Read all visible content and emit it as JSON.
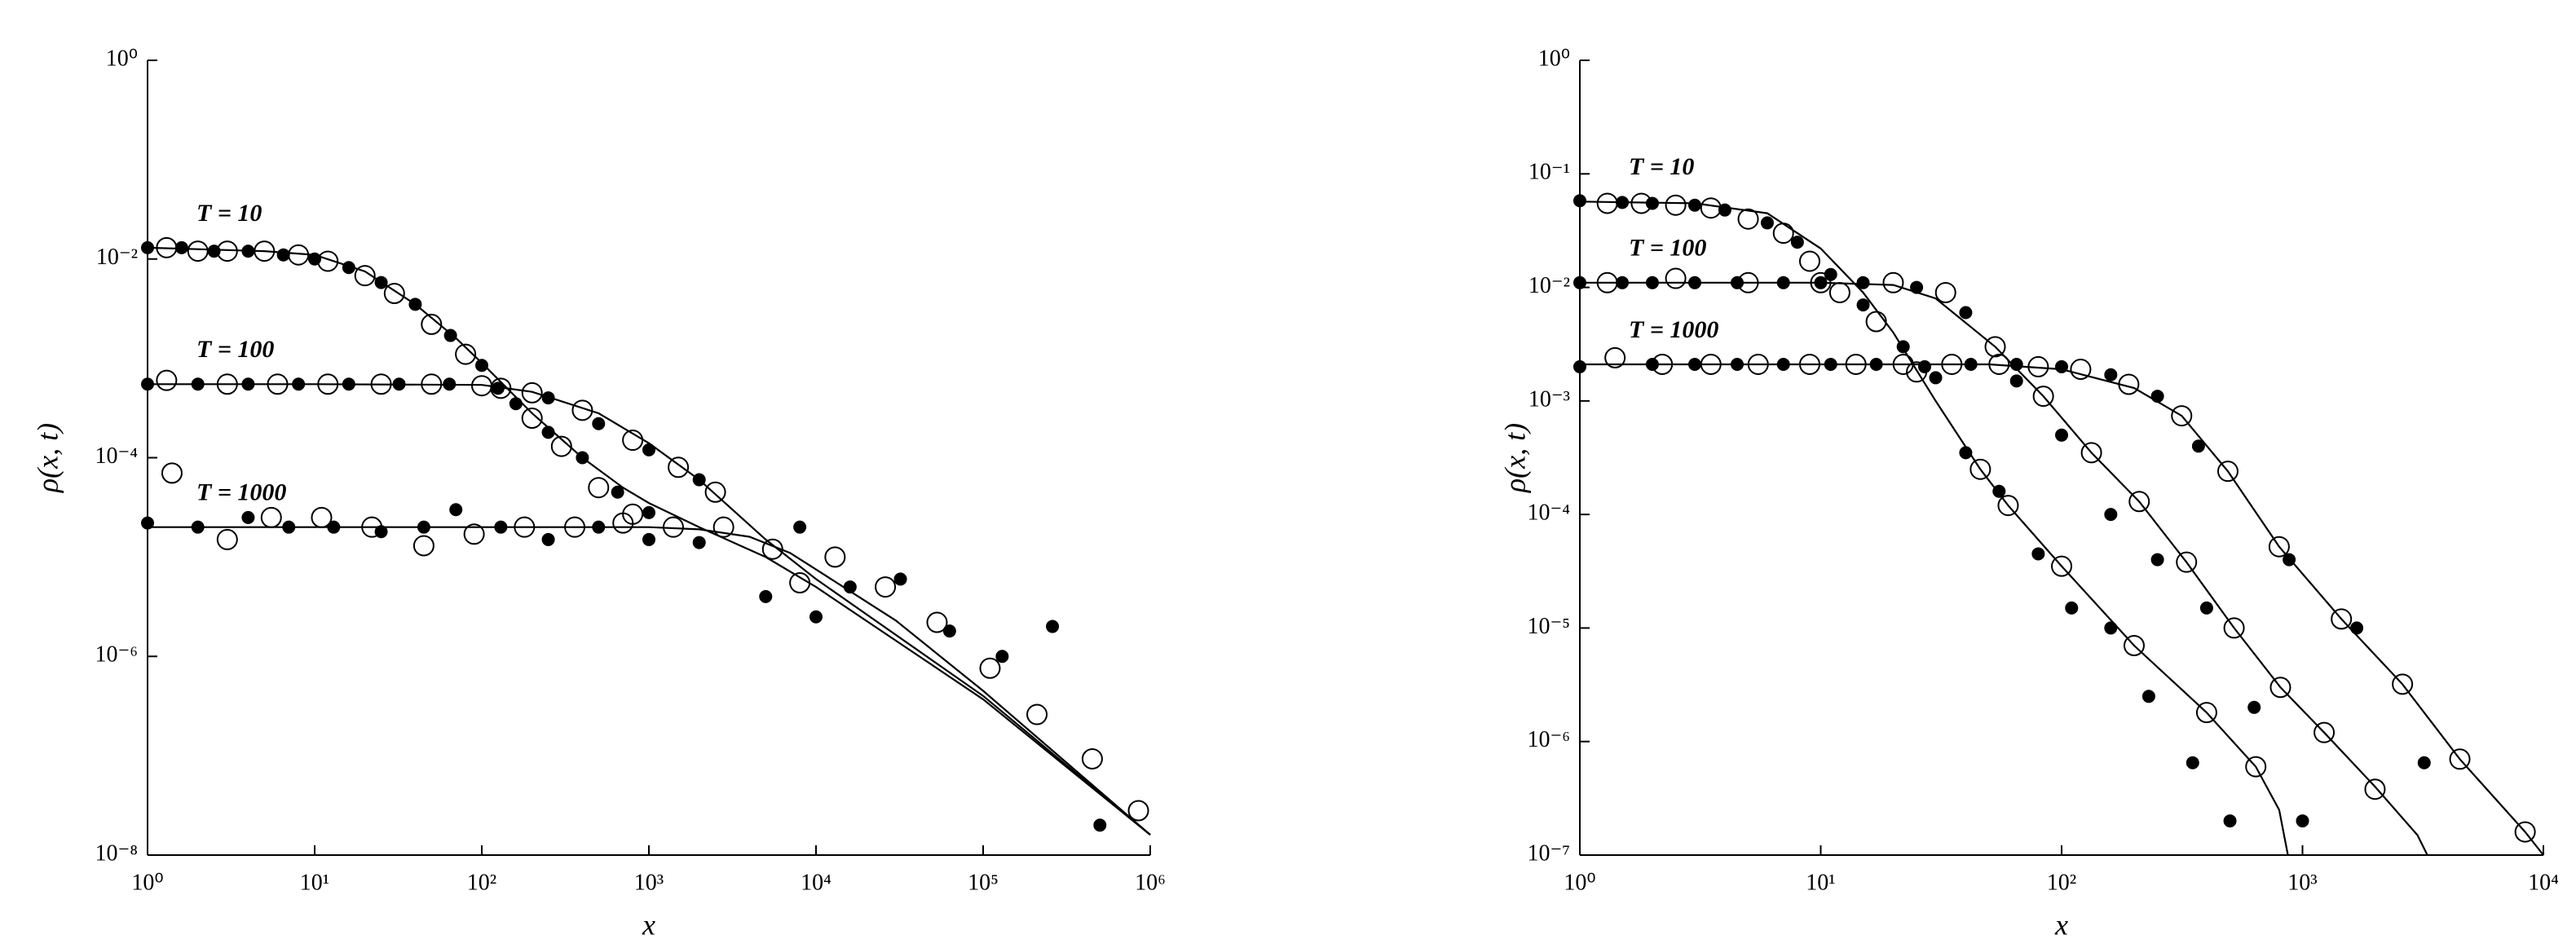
{
  "chart_data": [
    {
      "type": "scatter",
      "xscale": "log",
      "yscale": "log",
      "xlabel": "x",
      "ylabel": "ρ(x, t)",
      "annotations": [
        "T = 10",
        "T = 100",
        "T = 1000"
      ],
      "xlim": [
        1,
        1000000
      ],
      "ylim": [
        1e-08,
        1
      ],
      "xticks": [
        {
          "value": 1,
          "label": "10⁰"
        },
        {
          "value": 10,
          "label": "10¹"
        },
        {
          "value": 100,
          "label": "10²"
        },
        {
          "value": 1000,
          "label": "10³"
        },
        {
          "value": 10000,
          "label": "10⁴"
        },
        {
          "value": 100000,
          "label": "10⁵"
        },
        {
          "value": 1000000,
          "label": "10⁶"
        }
      ],
      "yticks": [
        {
          "value": 1e-08,
          "label": "10⁻⁸"
        },
        {
          "value": 1e-06,
          "label": "10⁻⁶"
        },
        {
          "value": 0.0001,
          "label": "10⁻⁴"
        },
        {
          "value": 0.01,
          "label": "10⁻²"
        },
        {
          "value": 1,
          "label": "10⁰"
        }
      ],
      "series": [
        {
          "style": "line",
          "color": "#000000",
          "x": [
            1,
            5,
            10,
            20,
            40,
            70,
            100,
            200,
            400,
            700,
            1000,
            2000,
            5000,
            10000,
            100000,
            1000000
          ],
          "values": [
            0.013,
            0.012,
            0.011,
            0.0075,
            0.0035,
            0.0016,
            0.0009,
            0.00028,
            0.0001,
            5e-05,
            3.5e-05,
            2e-05,
            1e-05,
            5e-06,
            3.7e-07,
            1.6e-08
          ]
        },
        {
          "style": "line",
          "color": "#000000",
          "x": [
            1,
            10,
            100,
            200,
            500,
            1000,
            2000,
            5000,
            10000,
            100000,
            1000000
          ],
          "values": [
            0.00055,
            0.00055,
            0.00054,
            0.00046,
            0.00028,
            0.00014,
            6e-05,
            1.5e-05,
            6e-06,
            4e-07,
            1.6e-08
          ]
        },
        {
          "style": "line",
          "color": "#000000",
          "x": [
            1,
            10,
            100,
            1000,
            2000,
            4000,
            7000,
            10000,
            30000,
            100000,
            1000000
          ],
          "values": [
            2e-05,
            2e-05,
            2e-05,
            2e-05,
            1.9e-05,
            1.6e-05,
            1.1e-05,
            7.5e-06,
            2.3e-06,
            4.5e-07,
            1.6e-08
          ]
        },
        {
          "style": "open",
          "color": "#000000",
          "x": [
            1.3,
            2,
            3,
            5,
            8,
            12,
            20,
            30,
            50,
            80,
            130,
            200,
            300,
            500,
            800
          ],
          "values": [
            0.013,
            0.012,
            0.012,
            0.012,
            0.011,
            0.0095,
            0.0068,
            0.0045,
            0.0022,
            0.0011,
            0.0005,
            0.00025,
            0.00013,
            5e-05,
            2.7e-05
          ]
        },
        {
          "style": "filled",
          "color": "#000000",
          "x": [
            1,
            1.6,
            2.5,
            4,
            6.5,
            10,
            16,
            25,
            40,
            65,
            100,
            160,
            250,
            400,
            650,
            1000
          ],
          "values": [
            0.013,
            0.013,
            0.012,
            0.012,
            0.011,
            0.01,
            0.0082,
            0.0058,
            0.0035,
            0.0017,
            0.00085,
            0.00035,
            0.00018,
            0.0001,
            4.5e-05,
            2.8e-05
          ]
        },
        {
          "style": "open",
          "color": "#000000",
          "x": [
            1.3,
            3,
            6,
            12,
            25,
            50,
            100,
            200,
            400,
            800,
            1500,
            2500
          ],
          "values": [
            0.0006,
            0.00055,
            0.00055,
            0.00055,
            0.00055,
            0.00055,
            0.00053,
            0.00045,
            0.0003,
            0.00015,
            8e-05,
            4.5e-05
          ]
        },
        {
          "style": "filled",
          "color": "#000000",
          "x": [
            1,
            2,
            4,
            8,
            16,
            32,
            64,
            125,
            250,
            500,
            1000,
            2000
          ],
          "values": [
            0.00055,
            0.00055,
            0.00055,
            0.00055,
            0.00055,
            0.00055,
            0.00055,
            0.0005,
            0.0004,
            0.00022,
            0.00012,
            6e-05
          ]
        },
        {
          "style": "open",
          "color": "#000000",
          "x": [
            1.4,
            3,
            5.5,
            11,
            22,
            45,
            90,
            180,
            360,
            700,
            1400,
            2800,
            5500,
            8000,
            13000,
            26000,
            53000,
            110000,
            210000,
            450000,
            850000
          ],
          "values": [
            7e-05,
            1.5e-05,
            2.5e-05,
            2.5e-05,
            2e-05,
            1.3e-05,
            1.7e-05,
            2e-05,
            2e-05,
            2.2e-05,
            2e-05,
            2e-05,
            1.2e-05,
            5.5e-06,
            1e-05,
            5e-06,
            2.2e-06,
            7.6e-07,
            2.6e-07,
            9.3e-08,
            2.8e-08
          ]
        },
        {
          "style": "filled",
          "color": "#000000",
          "x": [
            1,
            2,
            4,
            7,
            13,
            25,
            45,
            70,
            130,
            250,
            500,
            1000,
            2000,
            5000,
            8000,
            10000,
            16000,
            32000,
            63000,
            130000,
            260000,
            500000
          ],
          "values": [
            2.2e-05,
            2e-05,
            2.5e-05,
            2e-05,
            2e-05,
            1.8e-05,
            2e-05,
            3e-05,
            2e-05,
            1.5e-05,
            2e-05,
            1.5e-05,
            1.4e-05,
            4e-06,
            2e-05,
            2.5e-06,
            5e-06,
            6e-06,
            1.8e-06,
            1e-06,
            2e-06,
            2e-08
          ]
        }
      ]
    },
    {
      "type": "scatter",
      "xscale": "log",
      "yscale": "log",
      "xlabel": "x",
      "ylabel": "ρ(x, t)",
      "annotations": [
        "T = 10",
        "T = 100",
        "T = 1000"
      ],
      "xlim": [
        1,
        10000
      ],
      "ylim": [
        1e-07,
        1
      ],
      "xticks": [
        {
          "value": 1,
          "label": "10⁰"
        },
        {
          "value": 10,
          "label": "10¹"
        },
        {
          "value": 100,
          "label": "10²"
        },
        {
          "value": 1000,
          "label": "10³"
        },
        {
          "value": 10000,
          "label": "10⁴"
        }
      ],
      "yticks": [
        {
          "value": 1e-07,
          "label": "10⁻⁷"
        },
        {
          "value": 1e-06,
          "label": "10⁻⁶"
        },
        {
          "value": 1e-05,
          "label": "10⁻⁵"
        },
        {
          "value": 0.0001,
          "label": "10⁻⁴"
        },
        {
          "value": 0.001,
          "label": "10⁻³"
        },
        {
          "value": 0.01,
          "label": "10⁻²"
        },
        {
          "value": 0.1,
          "label": "10⁻¹"
        },
        {
          "value": 1,
          "label": "10⁰"
        }
      ],
      "series": [
        {
          "style": "line",
          "color": "#000000",
          "x": [
            1,
            3,
            6,
            10,
            15,
            20,
            30,
            46,
            60,
            100,
            200,
            400,
            640,
            800,
            870
          ],
          "values": [
            0.057,
            0.055,
            0.045,
            0.022,
            0.009,
            0.004,
            0.001,
            0.00025,
            0.00012,
            3.5e-05,
            7e-06,
            1.8e-06,
            6e-07,
            2.5e-07,
            1e-07
          ]
        },
        {
          "style": "line",
          "color": "#000000",
          "x": [
            1,
            10,
            20,
            30,
            53,
            84,
            133,
            210,
            330,
            520,
            810,
            1230,
            2000,
            3000,
            3300
          ],
          "values": [
            0.011,
            0.011,
            0.0105,
            0.008,
            0.003,
            0.0011,
            0.00035,
            0.00013,
            3.8e-05,
            1e-05,
            3e-06,
            1.2e-06,
            4e-07,
            1.5e-07,
            1e-07
          ]
        },
        {
          "style": "line",
          "color": "#000000",
          "x": [
            1,
            10,
            50,
            100,
            200,
            315,
            490,
            800,
            1450,
            2600,
            4500,
            8400,
            10000
          ],
          "values": [
            0.0021,
            0.0021,
            0.0021,
            0.0019,
            0.0013,
            0.00074,
            0.00024,
            5.2e-05,
            1.2e-05,
            3.2e-06,
            7e-07,
            1.6e-07,
            1e-07
          ]
        },
        {
          "style": "open",
          "color": "#000000",
          "x": [
            1.3,
            1.8,
            2.5,
            3.5,
            5,
            7,
            9,
            12,
            17,
            25,
            46,
            60,
            100,
            200,
            400,
            640
          ],
          "values": [
            0.055,
            0.055,
            0.053,
            0.05,
            0.04,
            0.03,
            0.017,
            0.009,
            0.005,
            0.0018,
            0.00025,
            0.00012,
            3.5e-05,
            7e-06,
            1.8e-06,
            6e-07
          ]
        },
        {
          "style": "filled",
          "color": "#000000",
          "x": [
            1,
            1.5,
            2,
            3,
            4,
            6,
            8,
            11,
            15,
            22,
            30,
            40,
            55,
            80,
            110,
            160,
            230,
            350,
            500
          ],
          "values": [
            0.058,
            0.056,
            0.055,
            0.053,
            0.048,
            0.037,
            0.025,
            0.013,
            0.007,
            0.003,
            0.0016,
            0.00035,
            0.00016,
            4.5e-05,
            1.5e-05,
            1e-05,
            2.5e-06,
            6.5e-07,
            2e-07
          ]
        },
        {
          "style": "open",
          "color": "#000000",
          "x": [
            1.3,
            2.5,
            5,
            10,
            20,
            33,
            53,
            84,
            133,
            210,
            330,
            520,
            810,
            1230,
            2000
          ],
          "values": [
            0.011,
            0.012,
            0.011,
            0.011,
            0.011,
            0.009,
            0.003,
            0.0011,
            0.00035,
            0.00013,
            3.8e-05,
            1e-05,
            3e-06,
            1.2e-06,
            3.8e-07
          ]
        },
        {
          "style": "filled",
          "color": "#000000",
          "x": [
            1,
            1.5,
            2,
            3,
            4.5,
            7,
            10,
            15,
            25,
            40,
            65,
            100,
            160,
            250,
            400,
            630,
            1000
          ],
          "values": [
            0.011,
            0.011,
            0.011,
            0.011,
            0.011,
            0.011,
            0.011,
            0.011,
            0.01,
            0.006,
            0.0015,
            0.0005,
            0.0001,
            4e-05,
            1.5e-05,
            2e-06,
            2e-07
          ]
        },
        {
          "style": "open",
          "color": "#000000",
          "x": [
            1.4,
            2.2,
            3.5,
            5.5,
            9,
            14,
            22,
            35,
            55,
            80,
            120,
            190,
            315,
            490,
            800,
            1450,
            2600,
            4500,
            8400
          ],
          "values": [
            0.0024,
            0.0021,
            0.0021,
            0.0021,
            0.0021,
            0.0021,
            0.0021,
            0.0021,
            0.0021,
            0.002,
            0.0019,
            0.0014,
            0.00074,
            0.00024,
            5.2e-05,
            1.2e-05,
            3.2e-06,
            7e-07,
            1.6e-07
          ]
        },
        {
          "style": "filled",
          "color": "#000000",
          "x": [
            1,
            2,
            3,
            4.5,
            7,
            11,
            17,
            27,
            42,
            65,
            100,
            160,
            250,
            370,
            880,
            1680,
            3200
          ],
          "values": [
            0.002,
            0.0021,
            0.0021,
            0.0021,
            0.0021,
            0.0021,
            0.0021,
            0.002,
            0.0021,
            0.0021,
            0.002,
            0.0017,
            0.0011,
            0.0004,
            4e-05,
            1e-05,
            6.5e-07
          ]
        }
      ]
    }
  ]
}
